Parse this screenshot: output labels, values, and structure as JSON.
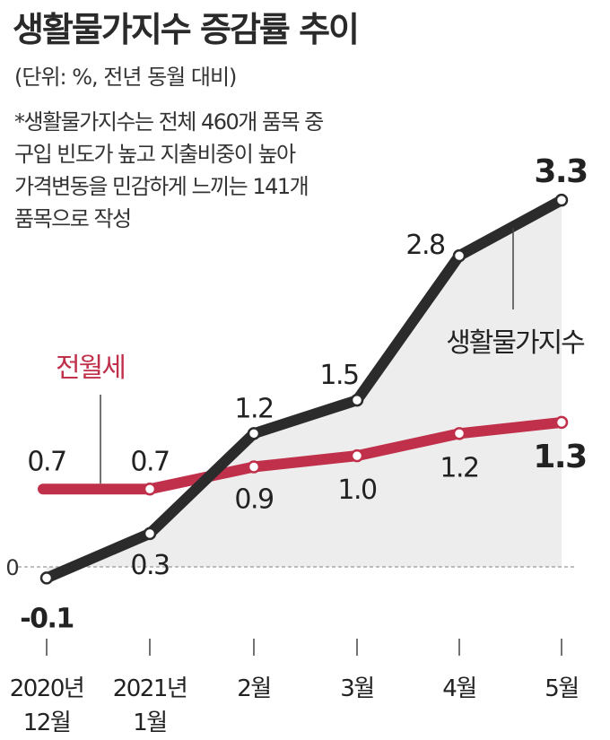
{
  "title": "생활물가지수 증감률 추이",
  "unit_note": "(단위: %, 전년 동월 대비)",
  "footnote_lines": [
    "*생활물가지수는 전체 460개 품목 중",
    "구입 빈도가 높고 지출비중이 높아",
    "가격변동을 민감하게 느끼는 141개",
    "품목으로 작성"
  ],
  "colors": {
    "living_price_index": "#2b2b2b",
    "jeonwolse": "#c0304a",
    "area_fill": "#ededed",
    "zero_line": "#999999"
  },
  "chart_data": {
    "type": "line",
    "title": "생활물가지수 증감률 추이",
    "ylabel": "%",
    "zero_label": "0",
    "ylim": [
      -0.2,
      3.4
    ],
    "categories": [
      "2020년 12월",
      "2021년 1월",
      "2월",
      "3월",
      "4월",
      "5월"
    ],
    "category_lines": [
      [
        "2020년",
        "12월"
      ],
      [
        "2021년",
        "1월"
      ],
      [
        "2월"
      ],
      [
        "3월"
      ],
      [
        "4월"
      ],
      [
        "5월"
      ]
    ],
    "series": [
      {
        "name": "생활물가지수",
        "values": [
          -0.1,
          0.3,
          1.2,
          1.5,
          2.8,
          3.3
        ],
        "labels": [
          "-0.1",
          "0.3",
          "1.2",
          "1.5",
          "2.8",
          "3.3"
        ],
        "color": "#2b2b2b"
      },
      {
        "name": "전월세",
        "values": [
          0.7,
          0.7,
          0.9,
          1.0,
          1.2,
          1.3
        ],
        "labels": [
          "0.7",
          "0.7",
          "0.9",
          "1.0",
          "1.2",
          "1.3"
        ],
        "color": "#c0304a"
      }
    ]
  }
}
